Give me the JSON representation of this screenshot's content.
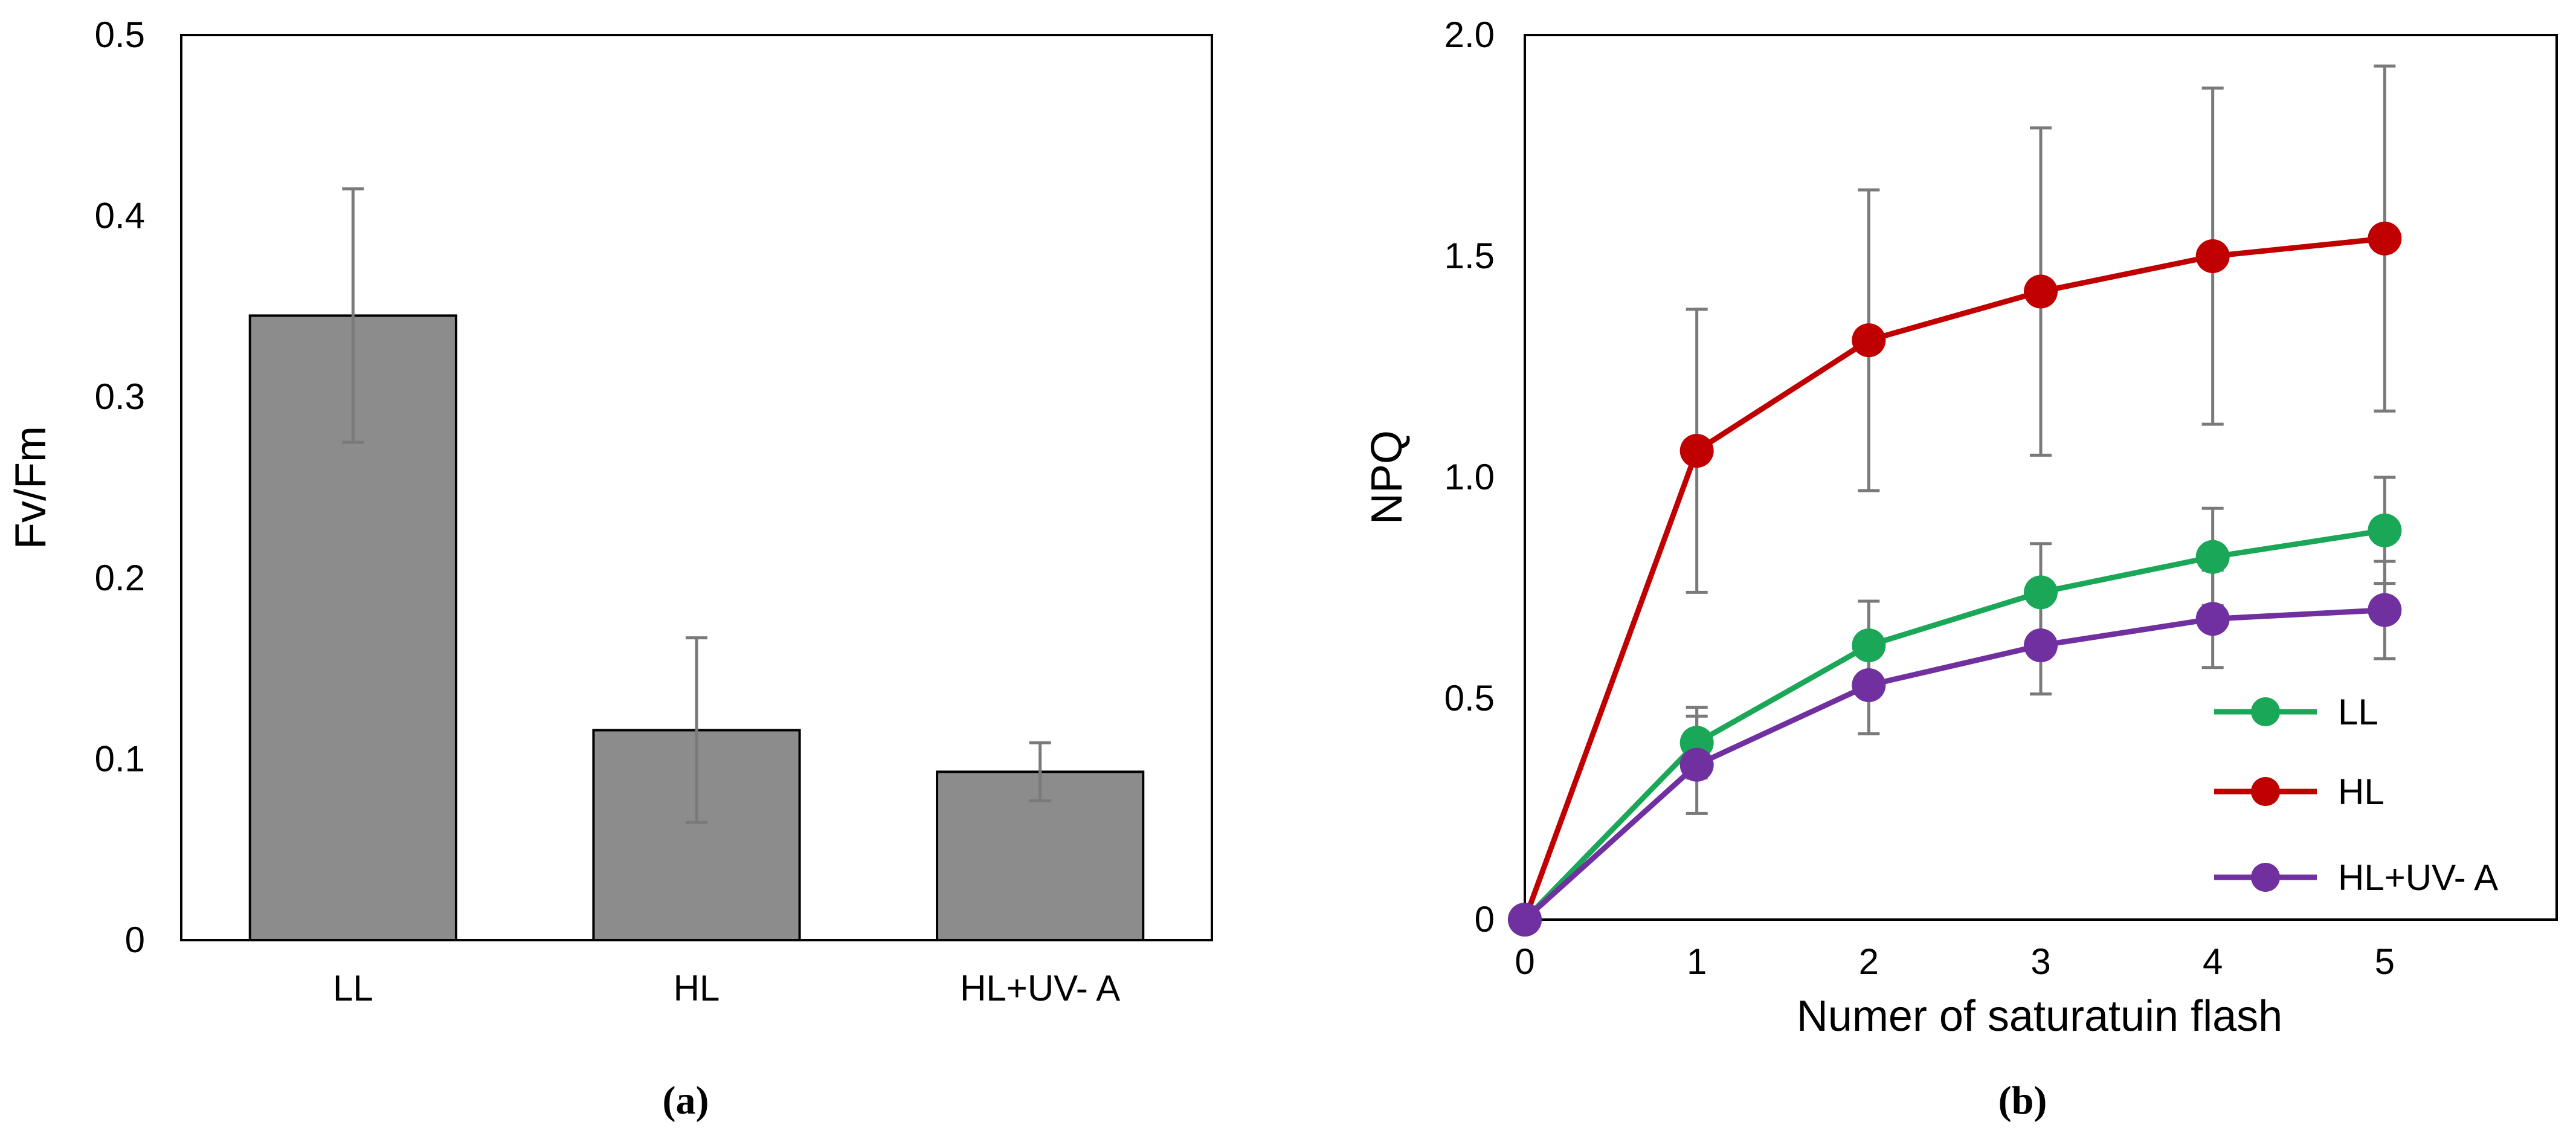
{
  "chart_data": [
    {
      "type": "bar",
      "caption": "(a)",
      "categories": [
        "LL",
        "HL",
        "HL+UV- A"
      ],
      "values": [
        0.345,
        0.116,
        0.093
      ],
      "errors": [
        0.07,
        0.051,
        0.016
      ],
      "ylabel": "Fv/Fm",
      "xlabel": "",
      "ylim": [
        0,
        0.5
      ],
      "yticks": [
        0,
        0.1,
        0.2,
        0.3,
        0.4,
        0.5
      ],
      "ytick_labels": [
        "0",
        "0.1",
        "0.2",
        "0.3",
        "0.4",
        "0.5"
      ],
      "colors": {
        "bar": "#8c8c8c",
        "error": "#7a7a7a"
      }
    },
    {
      "type": "line",
      "caption": "(b)",
      "x": [
        0,
        1,
        2,
        3,
        4,
        5
      ],
      "xticks": [
        0,
        1,
        2,
        3,
        4,
        5
      ],
      "xtick_labels": [
        "0",
        "1",
        "2",
        "3",
        "4",
        "5"
      ],
      "xlim": [
        0,
        6
      ],
      "ylim": [
        0,
        2.0
      ],
      "yticks": [
        0,
        0.5,
        1.0,
        1.5,
        2.0
      ],
      "ytick_labels": [
        "0",
        "0.5",
        "1.0",
        "1.5",
        "2.0"
      ],
      "xlabel": "Numer of saturatuin flash",
      "ylabel": "NPQ",
      "legend_position": "bottom-right",
      "series": [
        {
          "name": "LL",
          "color": "#1aa757",
          "values": [
            0,
            0.4,
            0.62,
            0.74,
            0.82,
            0.88
          ],
          "errors": [
            0,
            0.08,
            0.1,
            0.11,
            0.11,
            0.12
          ]
        },
        {
          "name": "HL",
          "color": "#c00000",
          "values": [
            0,
            1.06,
            1.31,
            1.42,
            1.5,
            1.54
          ],
          "errors": [
            0,
            0.32,
            0.34,
            0.37,
            0.38,
            0.39
          ]
        },
        {
          "name": "HL+UV- A",
          "color": "#7030a0",
          "values": [
            0,
            0.35,
            0.53,
            0.62,
            0.68,
            0.7
          ],
          "errors": [
            0,
            0.11,
            0.11,
            0.11,
            0.11,
            0.11
          ]
        }
      ],
      "colors": {
        "error": "#7a7a7a"
      }
    }
  ]
}
